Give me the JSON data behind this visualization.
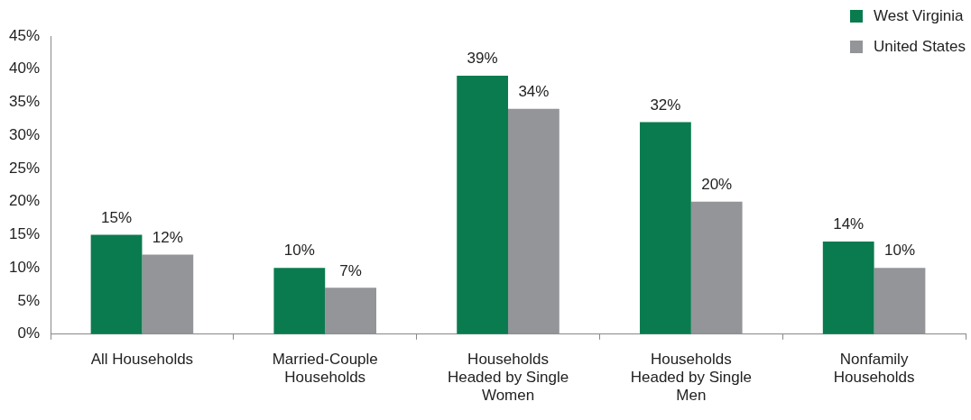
{
  "chart_data": {
    "type": "bar",
    "categories": [
      "All Households",
      "Married-Couple Households",
      "Households Headed by Single Women",
      "Households Headed by Single Men",
      "Nonfamily Households"
    ],
    "series": [
      {
        "name": "West Virginia",
        "color": "#0a7b4f",
        "values": [
          15,
          10,
          39,
          32,
          14
        ],
        "value_labels": [
          "15%",
          "10%",
          "39%",
          "32%",
          "14%"
        ]
      },
      {
        "name": "United States",
        "color": "#939598",
        "values": [
          12,
          7,
          34,
          20,
          10
        ],
        "value_labels": [
          "12%",
          "7%",
          "34%",
          "20%",
          "10%"
        ]
      }
    ],
    "ylim": [
      0,
      45
    ],
    "yticks": [
      {
        "value": 0,
        "label": "0%"
      },
      {
        "value": 5,
        "label": "5%"
      },
      {
        "value": 10,
        "label": "10%"
      },
      {
        "value": 15,
        "label": "15%"
      },
      {
        "value": 20,
        "label": "20%"
      },
      {
        "value": 25,
        "label": "25%"
      },
      {
        "value": 30,
        "label": "30%"
      },
      {
        "value": 35,
        "label": "35%"
      },
      {
        "value": 40,
        "label": "40%"
      },
      {
        "value": 45,
        "label": "45%"
      }
    ],
    "grid": false,
    "legend": "top right"
  }
}
